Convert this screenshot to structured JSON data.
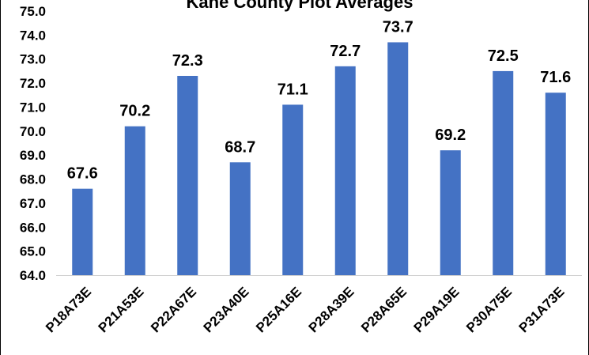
{
  "chart_data": {
    "type": "bar",
    "title": "Kane County Plot Averages",
    "xlabel": "",
    "ylabel": "",
    "categories": [
      "P18A73E",
      "P21A53E",
      "P22A67E",
      "P23A40E",
      "P25A16E",
      "P28A39E",
      "P28A65E",
      "P29A19E",
      "P30A75E",
      "P31A73E"
    ],
    "values": [
      67.6,
      70.2,
      72.3,
      68.7,
      71.1,
      72.7,
      73.7,
      69.2,
      72.5,
      71.6
    ],
    "data_labels": [
      "67.6",
      "70.2",
      "72.3",
      "68.7",
      "71.1",
      "72.7",
      "73.7",
      "69.2",
      "72.5",
      "71.6"
    ],
    "ylim": [
      64.0,
      75.0
    ],
    "yticks": [
      "64.0",
      "65.0",
      "66.0",
      "67.0",
      "68.0",
      "69.0",
      "70.0",
      "71.0",
      "72.0",
      "73.0",
      "74.0",
      "75.0"
    ],
    "grid": false,
    "legend": "none",
    "bar_color": "#4472C4"
  }
}
